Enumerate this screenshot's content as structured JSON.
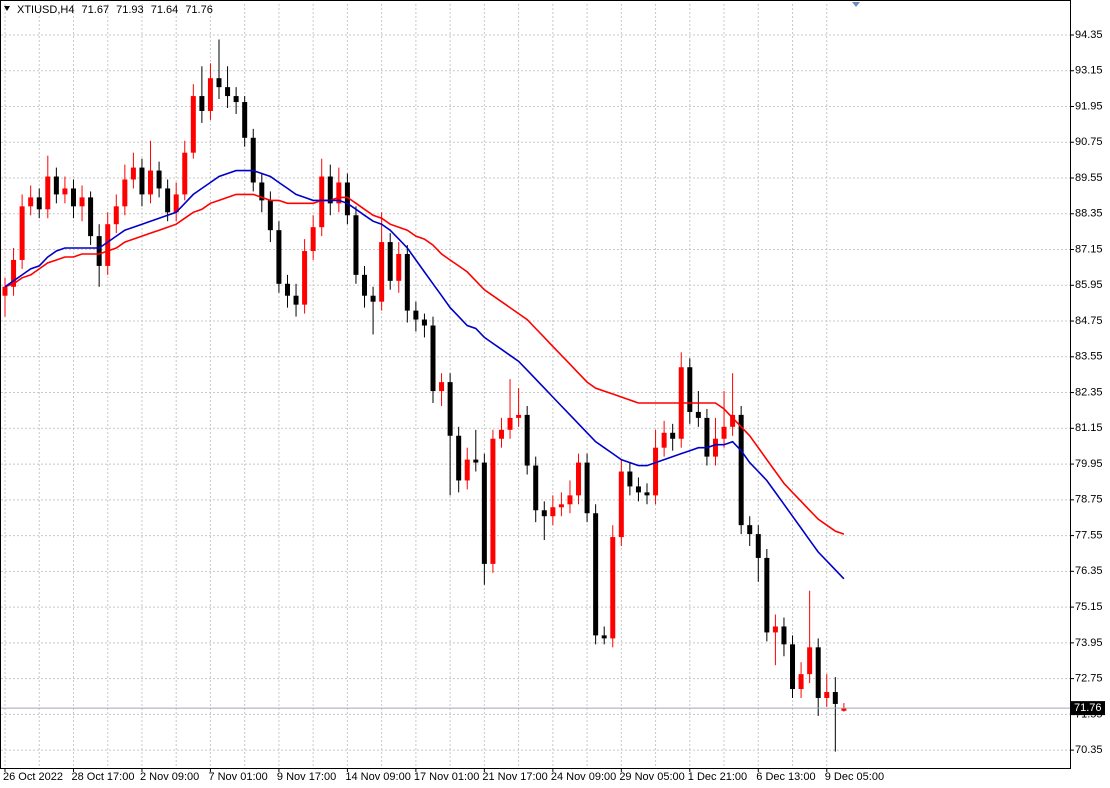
{
  "chart_data": {
    "type": "candlestick",
    "title": "XTIUSD,H4",
    "categories": [
      "26 Oct 2022",
      null,
      null,
      null,
      null,
      null,
      null,
      null,
      "28 Oct 17:00",
      null,
      null,
      null,
      null,
      null,
      null,
      null,
      "2 Nov 09:00",
      null,
      null,
      null,
      null,
      null,
      null,
      null,
      "7 Nov 01:00",
      null,
      null,
      null,
      null,
      null,
      null,
      null,
      "9 Nov 17:00",
      null,
      null,
      null,
      null,
      null,
      null,
      null,
      "14 Nov 09:00",
      null,
      null,
      null,
      null,
      null,
      null,
      null,
      "17 Nov 01:00",
      null,
      null,
      null,
      null,
      null,
      null,
      null,
      "21 Nov 17:00",
      null,
      null,
      null,
      null,
      null,
      null,
      null,
      "24 Nov 09:00",
      null,
      null,
      null,
      null,
      null,
      null,
      null,
      "29 Nov 05:00",
      null,
      null,
      null,
      null,
      null,
      null,
      null,
      "1 Dec 21:00",
      null,
      null,
      null,
      null,
      null,
      null,
      null,
      "6 Dec 13:00",
      null,
      null,
      null,
      null,
      null,
      null,
      null,
      "9 Dec 05:00",
      null,
      null
    ],
    "open": [
      85.6,
      85.9,
      86.8,
      88.6,
      88.9,
      88.5,
      89.6,
      89.0,
      89.2,
      88.6,
      88.9,
      87.6,
      86.6,
      88.0,
      88.6,
      89.5,
      89.9,
      89.0,
      89.8,
      89.2,
      88.4,
      89.0,
      90.4,
      92.3,
      91.8,
      92.9,
      92.6,
      92.3,
      92.1,
      90.9,
      89.4,
      88.8,
      87.8,
      86.0,
      85.6,
      85.3,
      87.1,
      87.9,
      89.6,
      88.7,
      89.4,
      88.3,
      86.3,
      85.6,
      85.4,
      87.4,
      86.1,
      87.0,
      85.1,
      84.8,
      84.6,
      82.4,
      82.7,
      80.9,
      79.4,
      80.1,
      80.0,
      76.6,
      80.8,
      81.1,
      81.5,
      81.6,
      79.9,
      78.4,
      78.2,
      78.5,
      78.6,
      78.9,
      80.0,
      78.3,
      74.2,
      74.1,
      77.5,
      79.7,
      79.2,
      79.0,
      78.9,
      80.5,
      81.0,
      80.8,
      83.2,
      81.7,
      81.5,
      80.2,
      80.8,
      81.2,
      81.6,
      77.9,
      77.6,
      76.8,
      74.3,
      74.5,
      73.9,
      72.4,
      72.9,
      73.8,
      72.1,
      72.3,
      71.67
    ],
    "high": [
      86.2,
      87.2,
      89.0,
      89.3,
      89.2,
      90.3,
      89.9,
      89.6,
      89.5,
      89.3,
      89.1,
      88.0,
      88.4,
      89.0,
      90.0,
      90.4,
      90.2,
      90.8,
      90.1,
      89.5,
      89.4,
      90.8,
      92.7,
      93.3,
      93.4,
      94.2,
      93.3,
      92.6,
      92.3,
      91.2,
      89.7,
      89.1,
      88.1,
      86.3,
      86.0,
      87.5,
      88.3,
      90.2,
      90.0,
      89.9,
      89.7,
      88.6,
      86.6,
      85.9,
      88.4,
      87.7,
      87.4,
      87.3,
      85.4,
      85.0,
      84.9,
      83.0,
      83.0,
      81.2,
      80.5,
      81.1,
      80.3,
      81.1,
      81.5,
      82.8,
      82.5,
      81.9,
      80.2,
      78.7,
      78.9,
      79.0,
      79.4,
      80.3,
      80.3,
      78.6,
      74.5,
      77.9,
      80.1,
      80.0,
      79.5,
      79.3,
      81.1,
      81.4,
      81.3,
      83.7,
      83.5,
      82.4,
      81.8,
      81.5,
      82.4,
      83.0,
      81.9,
      78.2,
      77.9,
      77.1,
      74.9,
      74.8,
      74.2,
      73.3,
      75.7,
      74.1,
      72.9,
      72.8,
      71.93
    ],
    "low": [
      84.9,
      85.6,
      86.5,
      88.3,
      88.2,
      88.2,
      88.7,
      88.7,
      88.2,
      88.1,
      87.3,
      85.9,
      86.3,
      87.7,
      88.3,
      89.2,
      88.6,
      88.7,
      88.9,
      88.1,
      88.1,
      88.8,
      90.2,
      91.4,
      91.5,
      92.2,
      91.9,
      91.7,
      90.6,
      89.1,
      88.4,
      87.4,
      85.7,
      85.2,
      84.9,
      85.0,
      86.8,
      87.6,
      88.3,
      88.4,
      88.0,
      86.0,
      85.2,
      84.3,
      85.1,
      85.8,
      85.7,
      84.7,
      84.4,
      84.2,
      82.0,
      81.9,
      78.9,
      79.0,
      79.1,
      79.7,
      75.9,
      76.3,
      80.5,
      80.8,
      81.2,
      79.6,
      78.0,
      77.4,
      77.9,
      78.2,
      78.3,
      78.6,
      78.0,
      73.9,
      73.9,
      73.8,
      77.2,
      78.9,
      78.7,
      78.6,
      78.6,
      80.2,
      80.4,
      80.5,
      81.3,
      81.2,
      79.9,
      79.9,
      80.5,
      80.9,
      77.6,
      77.2,
      76.0,
      74.0,
      73.2,
      73.5,
      72.1,
      72.1,
      72.6,
      71.5,
      71.8,
      70.3,
      71.64
    ],
    "close": [
      85.9,
      86.8,
      88.6,
      88.9,
      88.5,
      89.6,
      89.0,
      89.2,
      88.6,
      88.9,
      87.6,
      86.6,
      88.0,
      88.6,
      89.5,
      89.9,
      89.0,
      89.8,
      89.2,
      88.4,
      89.0,
      90.4,
      92.3,
      91.8,
      92.9,
      92.6,
      92.3,
      92.1,
      90.9,
      89.4,
      88.8,
      87.8,
      86.0,
      85.6,
      85.3,
      87.1,
      87.9,
      89.6,
      88.7,
      89.4,
      88.3,
      86.3,
      85.6,
      85.4,
      87.4,
      86.1,
      87.0,
      85.1,
      84.8,
      84.6,
      82.4,
      82.7,
      80.9,
      79.4,
      80.1,
      80.0,
      76.6,
      80.8,
      81.1,
      81.5,
      81.6,
      79.9,
      78.4,
      78.2,
      78.5,
      78.6,
      78.9,
      80.0,
      78.3,
      74.2,
      74.1,
      77.5,
      79.7,
      79.2,
      79.0,
      78.9,
      80.5,
      81.0,
      80.8,
      83.2,
      81.7,
      81.5,
      80.2,
      80.8,
      81.2,
      81.6,
      77.9,
      77.6,
      76.8,
      74.3,
      74.5,
      73.9,
      72.4,
      72.9,
      73.8,
      72.1,
      72.3,
      71.9,
      71.76
    ],
    "up_color": "#ff0000",
    "down_color": "#000000",
    "moving_averages": [
      {
        "color": "#ff0000",
        "values": [
          85.9,
          86.0,
          86.2,
          86.3,
          86.5,
          86.7,
          86.8,
          86.9,
          86.9,
          87.0,
          87.0,
          87.0,
          87.1,
          87.2,
          87.4,
          87.5,
          87.6,
          87.7,
          87.8,
          87.9,
          88.0,
          88.2,
          88.4,
          88.5,
          88.7,
          88.8,
          88.9,
          89.0,
          89.0,
          89.0,
          88.9,
          88.8,
          88.8,
          88.7,
          88.7,
          88.7,
          88.7,
          88.8,
          88.8,
          88.9,
          88.9,
          88.7,
          88.5,
          88.3,
          88.2,
          88.0,
          87.9,
          87.8,
          87.6,
          87.5,
          87.3,
          87.0,
          86.8,
          86.6,
          86.4,
          86.1,
          85.8,
          85.6,
          85.4,
          85.2,
          85.0,
          84.8,
          84.5,
          84.2,
          83.9,
          83.6,
          83.3,
          83.0,
          82.7,
          82.5,
          82.4,
          82.3,
          82.2,
          82.1,
          82.0,
          82.0,
          82.0,
          82.0,
          82.0,
          82.0,
          82.0,
          82.0,
          82.0,
          82.0,
          81.8,
          81.5,
          81.2,
          80.9,
          80.5,
          80.1,
          79.7,
          79.3,
          79.0,
          78.7,
          78.4,
          78.1,
          77.9,
          77.7,
          77.6
        ]
      },
      {
        "color": "#0000c8",
        "values": [
          85.9,
          86.1,
          86.3,
          86.5,
          86.6,
          86.9,
          87.1,
          87.2,
          87.2,
          87.2,
          87.2,
          87.2,
          87.4,
          87.6,
          87.8,
          87.9,
          88.0,
          88.1,
          88.2,
          88.3,
          88.4,
          88.7,
          89.0,
          89.2,
          89.4,
          89.6,
          89.7,
          89.8,
          89.8,
          89.8,
          89.7,
          89.6,
          89.4,
          89.2,
          89.0,
          88.9,
          88.8,
          88.8,
          88.8,
          88.8,
          88.7,
          88.5,
          88.3,
          88.1,
          88.0,
          87.8,
          87.5,
          87.2,
          86.8,
          86.4,
          86.0,
          85.6,
          85.2,
          84.9,
          84.6,
          84.5,
          84.2,
          84.0,
          83.8,
          83.6,
          83.4,
          83.1,
          82.8,
          82.5,
          82.2,
          81.9,
          81.6,
          81.3,
          81.0,
          80.7,
          80.5,
          80.3,
          80.1,
          80.0,
          79.9,
          79.9,
          80.0,
          80.1,
          80.2,
          80.3,
          80.4,
          80.5,
          80.5,
          80.6,
          80.6,
          80.7,
          80.4,
          80.0,
          79.7,
          79.4,
          79.0,
          78.6,
          78.2,
          77.8,
          77.4,
          77.0,
          76.7,
          76.4,
          76.1
        ]
      }
    ],
    "ylim": [
      69.75,
      95.39
    ],
    "yticks": [
      94.35,
      93.15,
      91.95,
      90.75,
      89.55,
      88.35,
      87.15,
      85.95,
      84.75,
      83.55,
      82.35,
      81.15,
      79.95,
      78.75,
      77.55,
      76.35,
      75.15,
      73.95,
      72.75,
      71.55,
      70.35
    ],
    "grid": true
  }
}
